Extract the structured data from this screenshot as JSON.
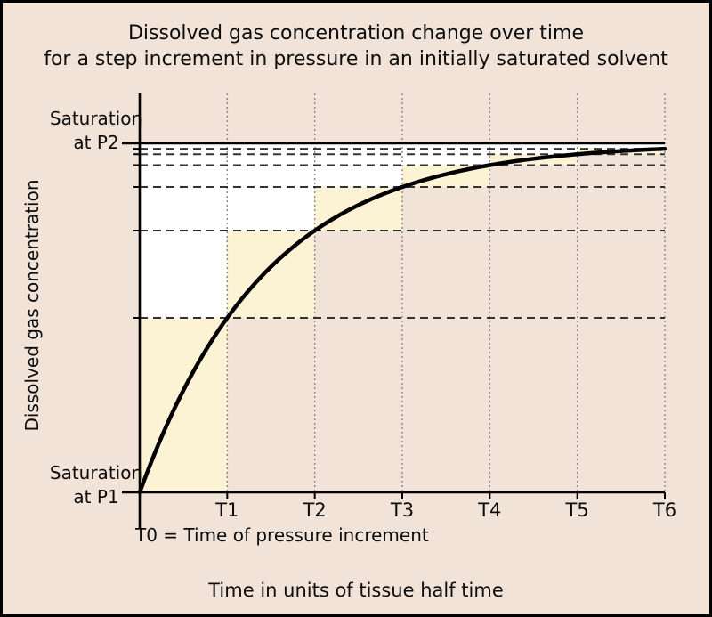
{
  "frame": {
    "background_color": "#f2e3d9",
    "border_color": "#000000"
  },
  "title": {
    "line1": "Dissolved gas concentration change over time",
    "line2": "for a step increment in pressure in an initially saturated solvent"
  },
  "y_axis": {
    "label": "Dissolved gas concentration",
    "top_tick_label_line1": "Saturation",
    "top_tick_label_line2": "at P2",
    "bottom_tick_label_line1": "Saturation",
    "bottom_tick_label_line2": "at P1"
  },
  "x_axis": {
    "label": "Time in units of tissue half time",
    "note": "T0 = Time of pressure increment",
    "tick_labels": [
      "T1",
      "T2",
      "T3",
      "T4",
      "T5",
      "T6"
    ]
  },
  "chart_data": {
    "type": "line",
    "title": "Dissolved gas concentration change over time for a step increment in pressure in an initially saturated solvent",
    "xlabel": "Time in units of tissue half time",
    "ylabel": "Dissolved gas concentration",
    "x_unit": "tissue half times",
    "x_range": [
      0,
      6
    ],
    "x_tick_values": [
      1,
      2,
      3,
      4,
      5,
      6
    ],
    "x_tick_labels": [
      "T1",
      "T2",
      "T3",
      "T4",
      "T5",
      "T6"
    ],
    "x_origin_note": "T0 = Time of pressure increment",
    "y_start_label": "Saturation at P1",
    "y_end_label": "Saturation at P2",
    "curve_formula": "fraction(t) = 1 - 2^(-t)",
    "curve_points": [
      {
        "t": 0,
        "fraction": 0
      },
      {
        "t": 1,
        "fraction": 0.5
      },
      {
        "t": 2,
        "fraction": 0.75
      },
      {
        "t": 3,
        "fraction": 0.875
      },
      {
        "t": 4,
        "fraction": 0.9375
      },
      {
        "t": 5,
        "fraction": 0.96875
      },
      {
        "t": 6,
        "fraction": 0.984375
      }
    ],
    "dashed_guide_levels": [
      0.5,
      0.75,
      0.875,
      0.9375,
      0.96875,
      0.984375
    ],
    "saturation_level": 1.0,
    "increment_blocks": [
      {
        "t_start": 0,
        "t_end": 1,
        "from": 0,
        "to": 0.5
      },
      {
        "t_start": 1,
        "t_end": 2,
        "from": 0.5,
        "to": 0.75
      },
      {
        "t_start": 2,
        "t_end": 3,
        "from": 0.75,
        "to": 0.875
      },
      {
        "t_start": 3,
        "t_end": 4,
        "from": 0.875,
        "to": 0.9375
      },
      {
        "t_start": 4,
        "t_end": 5,
        "from": 0.9375,
        "to": 0.96875
      },
      {
        "t_start": 5,
        "t_end": 6,
        "from": 0.96875,
        "to": 0.984375
      }
    ],
    "grid": {
      "vertical_dotted_at_ticks": true,
      "legend": "none"
    },
    "colors": {
      "background": "#f2e3d9",
      "deficit_region": "#ffffff",
      "increment_block": "#fcf3d4",
      "curve": "#000000",
      "axis": "#000000",
      "dashed_line": "#333333",
      "grid_dotted": "#8d857c"
    }
  }
}
